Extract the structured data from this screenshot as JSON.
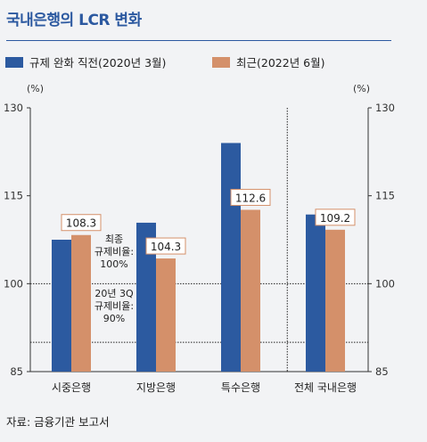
{
  "header": {
    "title": "국내은행의 LCR 변화"
  },
  "legend": {
    "items": [
      {
        "label": "규제 완화 직전(2020년 3월)",
        "color": "#2c5aa0"
      },
      {
        "label": "최근(2022년 6월)",
        "color": "#d4906a"
      }
    ]
  },
  "chart_data": {
    "type": "bar",
    "title": "국내은행의 LCR 변화",
    "categories": [
      "시중은행",
      "지방은행",
      "특수은행",
      "전체 국내은행"
    ],
    "series": [
      {
        "name": "규제 완화 직전(2020년 3월)",
        "values": [
          107.5,
          110.4,
          124.0,
          111.8
        ],
        "color": "#2c5aa0"
      },
      {
        "name": "최근(2022년 6월)",
        "values": [
          108.3,
          104.3,
          112.6,
          109.2
        ],
        "color": "#d4906a"
      }
    ],
    "data_labels": [
      "108.3",
      "104.3",
      "112.6",
      "109.2"
    ],
    "ylim": [
      85,
      130
    ],
    "yticks": [
      85,
      100,
      115,
      130
    ],
    "yunit_left": "(%)",
    "yunit_right": "(%)",
    "reference_lines": [
      {
        "value": 100,
        "label_lines": [
          "최종",
          "규제비율:",
          "100%"
        ]
      },
      {
        "value": 90,
        "label_lines": [
          "20년 3Q",
          "규제비율:",
          "90%"
        ]
      }
    ]
  },
  "footer": {
    "source": "자료: 금융기관 보고서"
  }
}
